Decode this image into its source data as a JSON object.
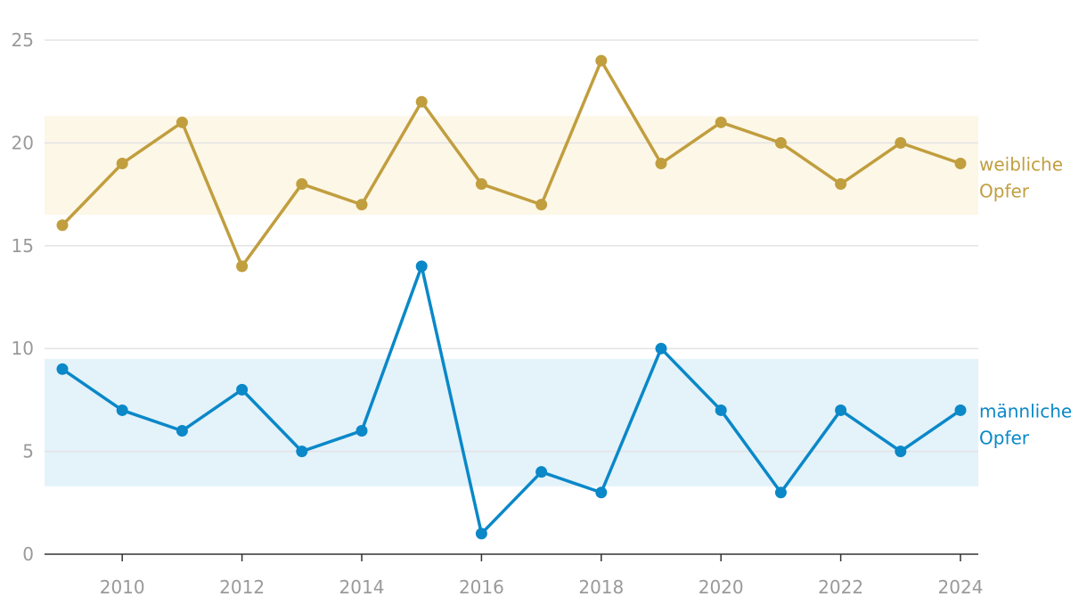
{
  "chart_data": {
    "type": "line",
    "x": [
      2009,
      2010,
      2011,
      2012,
      2013,
      2014,
      2015,
      2016,
      2017,
      2018,
      2019,
      2020,
      2021,
      2022,
      2023,
      2024
    ],
    "x_tick_labels": [
      "2010",
      "2012",
      "2014",
      "2016",
      "2018",
      "2020",
      "2022",
      "2024"
    ],
    "y_tick_labels": [
      "0",
      "5",
      "10",
      "15",
      "20",
      "25"
    ],
    "ylim": [
      0,
      25
    ],
    "grid": true,
    "series": [
      {
        "name_lines": [
          "weibliche",
          "Opfer"
        ],
        "color": "#c19e3e",
        "band_color": "#fdf7e8",
        "band_range": [
          16.5,
          21.3
        ],
        "values": [
          16,
          19,
          21,
          14,
          18,
          17,
          22,
          18,
          17,
          24,
          19,
          21,
          20,
          18,
          20,
          19
        ]
      },
      {
        "name_lines": [
          "männliche",
          "Opfer"
        ],
        "color": "#0a88c8",
        "band_color": "#e4f2fa",
        "band_range": [
          3.3,
          9.5
        ],
        "values": [
          9,
          7,
          6,
          8,
          5,
          6,
          14,
          1,
          4,
          3,
          10,
          7,
          3,
          7,
          5,
          7
        ]
      }
    ]
  }
}
